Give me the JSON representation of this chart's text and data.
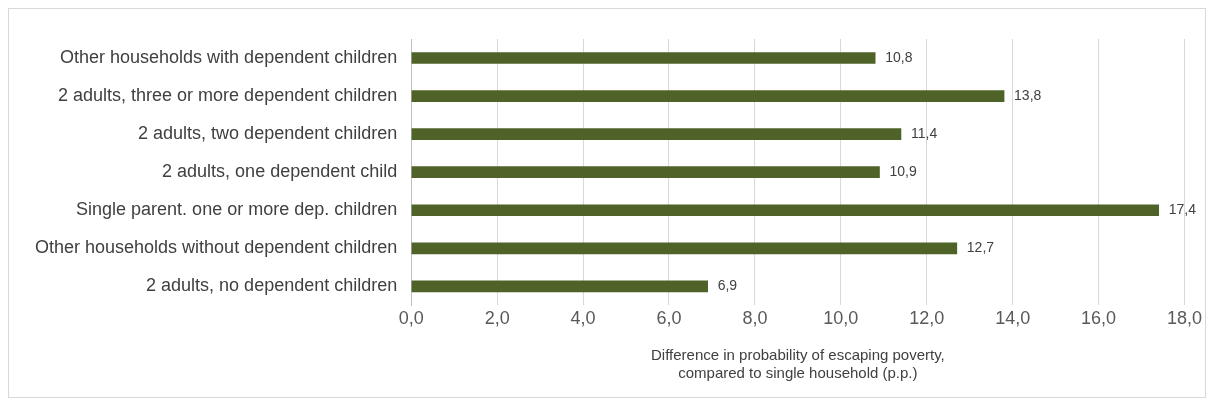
{
  "chart_data": {
    "type": "bar",
    "orientation": "horizontal",
    "xlabel": "Difference in probability of escaping poverty, compared to single household (p.p.)",
    "categories": [
      "Other households with dependent children",
      "2 adults, three or more dependent children",
      "2 adults, two dependent children",
      "2 adults, one dependent child",
      "Single parent. one or more dep. children",
      "Other households without dependent children",
      "2 adults, no dependent children"
    ],
    "values": [
      10.8,
      13.8,
      11.4,
      10.9,
      17.4,
      12.7,
      6.9
    ],
    "value_labels": [
      "10,8",
      "13,8",
      "11,4",
      "10,9",
      "17,4",
      "12,7",
      "6,9"
    ],
    "color": "#4f6228",
    "xlim": [
      0,
      18
    ],
    "xticks": [
      {
        "value": 0,
        "label": "0,0"
      },
      {
        "value": 2,
        "label": "2,0"
      },
      {
        "value": 4,
        "label": "4,0"
      },
      {
        "value": 6,
        "label": "6,0"
      },
      {
        "value": 8,
        "label": "8,0"
      },
      {
        "value": 10,
        "label": "10,0"
      },
      {
        "value": 12,
        "label": "12,0"
      },
      {
        "value": 14,
        "label": "14,0"
      },
      {
        "value": 16,
        "label": "16,0"
      },
      {
        "value": 18,
        "label": "18,0"
      }
    ],
    "grid": "x",
    "legend": false
  }
}
